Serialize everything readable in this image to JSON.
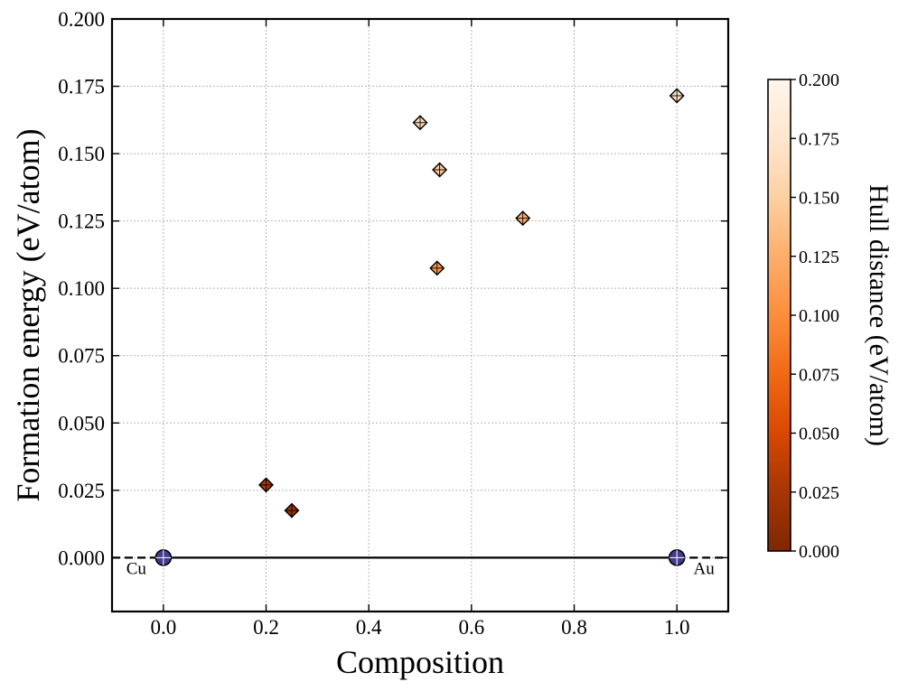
{
  "chart_data": {
    "type": "scatter",
    "title": "",
    "xlabel": "Composition",
    "ylabel": "Formation energy (eV/atom)",
    "xlim": [
      -0.1,
      1.1
    ],
    "ylim": [
      -0.02,
      0.2
    ],
    "x_ticks": [
      "0.0",
      "0.2",
      "0.4",
      "0.6",
      "0.8",
      "1.0"
    ],
    "y_ticks": [
      "0.000",
      "0.025",
      "0.050",
      "0.075",
      "0.100",
      "0.125",
      "0.150",
      "0.175",
      "0.200"
    ],
    "grid": true,
    "hull_points": [
      {
        "x": 0.0,
        "y": 0.0,
        "label": "Cu"
      },
      {
        "x": 1.0,
        "y": 0.0,
        "label": "Au"
      }
    ],
    "points": [
      {
        "x": 0.2,
        "y": 0.027,
        "hull_distance": 0.027
      },
      {
        "x": 0.25,
        "y": 0.0175,
        "hull_distance": 0.0175
      },
      {
        "x": 0.5,
        "y": 0.1615,
        "hull_distance": 0.1615
      },
      {
        "x": 0.533,
        "y": 0.1075,
        "hull_distance": 0.1075
      },
      {
        "x": 0.538,
        "y": 0.144,
        "hull_distance": 0.144
      },
      {
        "x": 0.7,
        "y": 0.126,
        "hull_distance": 0.126
      },
      {
        "x": 1.0,
        "y": 0.1715,
        "hull_distance": 0.1715
      }
    ],
    "colorbar": {
      "label": "Hull distance (eV/atom)",
      "range": [
        0.0,
        0.2
      ],
      "ticks": [
        "0.000",
        "0.025",
        "0.050",
        "0.075",
        "0.100",
        "0.125",
        "0.150",
        "0.175",
        "0.200"
      ],
      "colormap": "Oranges_r"
    },
    "colors": {
      "hull_marker": "#433b8f",
      "hull_line": "#000000"
    }
  }
}
